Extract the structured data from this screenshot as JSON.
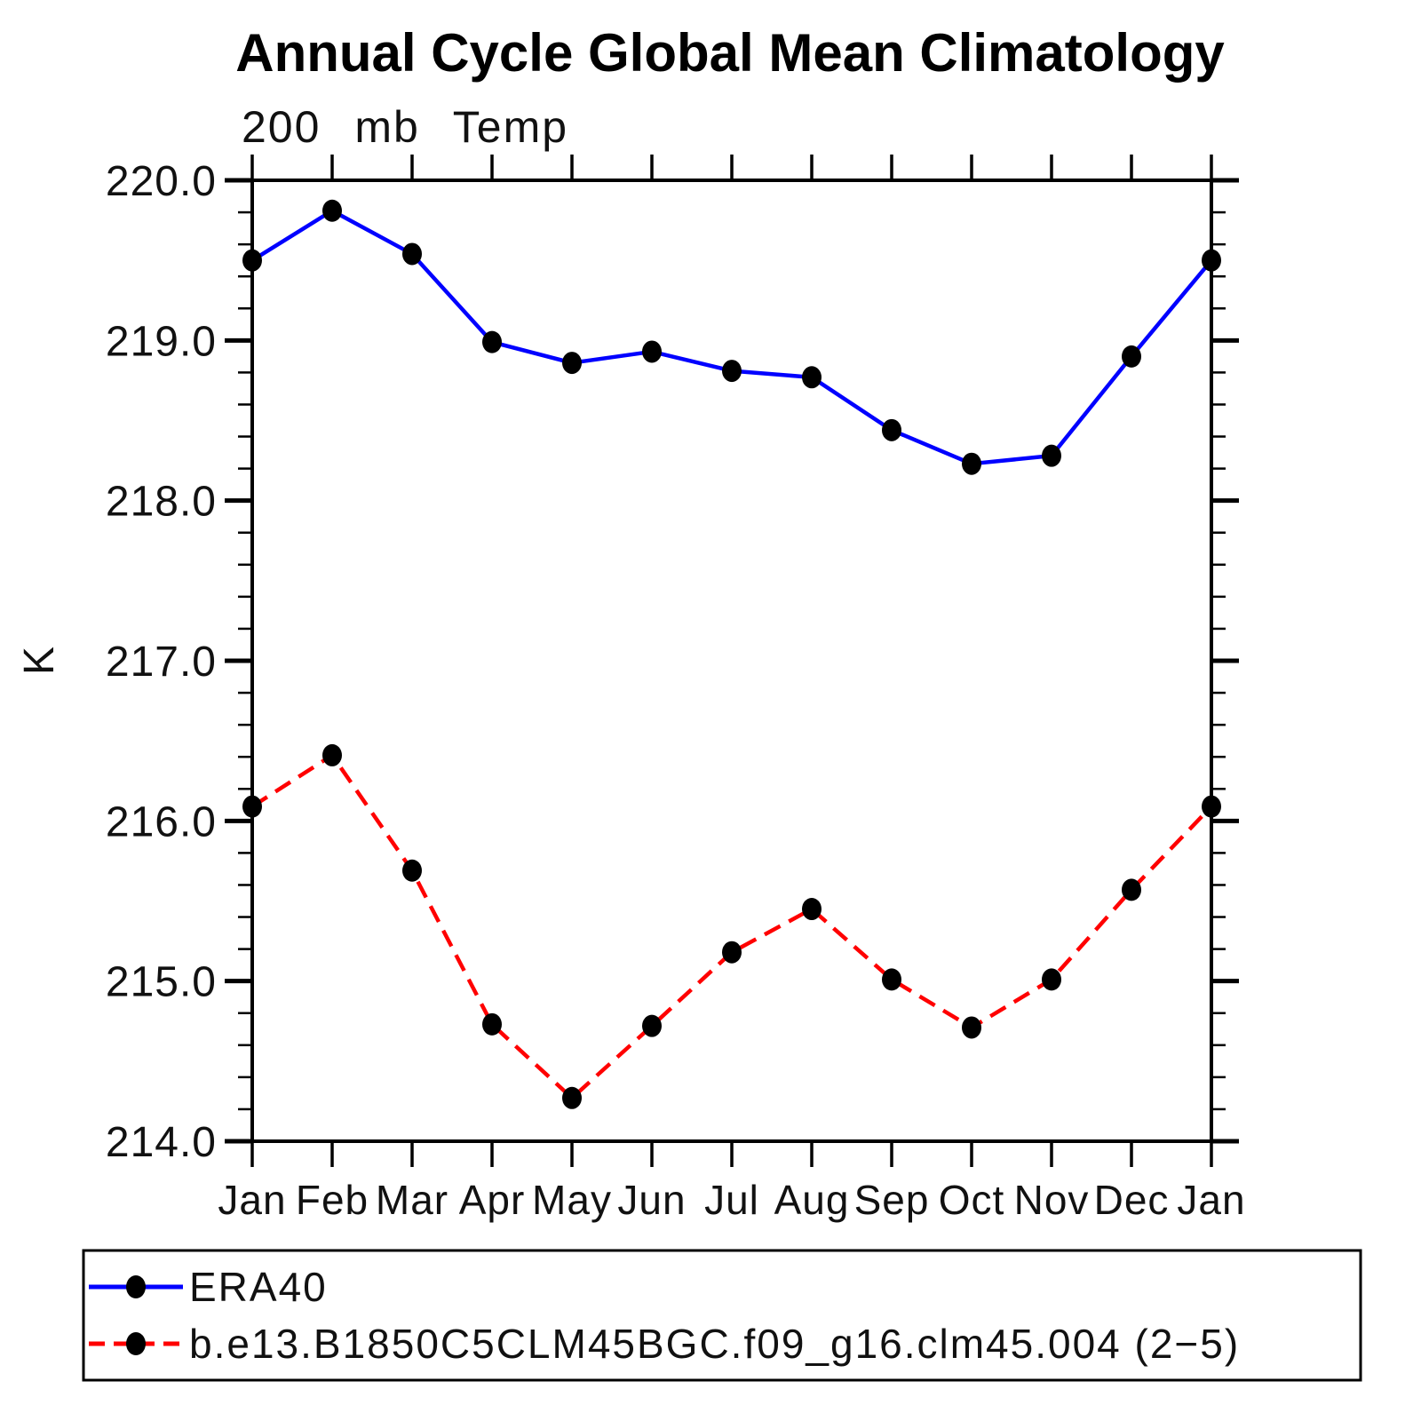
{
  "title": "Annual Cycle Global Mean Climatology",
  "subtitle": "200 mb Temp",
  "ylabel": "K",
  "chart_data": {
    "type": "line",
    "categories": [
      "Jan",
      "Feb",
      "Mar",
      "Apr",
      "May",
      "Jun",
      "Jul",
      "Aug",
      "Sep",
      "Oct",
      "Nov",
      "Dec",
      "Jan"
    ],
    "xlabel": "",
    "ylabel": "K",
    "ylim": [
      214.0,
      220.0
    ],
    "ytick_major": 1.0,
    "ytick_minor": 0.2,
    "yticklabels": [
      "220.0",
      "219.0",
      "218.0",
      "217.0",
      "216.0",
      "215.0",
      "214.0"
    ],
    "grid": false,
    "tick_direction": "out",
    "legend_position": "bottom box",
    "series": [
      {
        "name": "ERA40",
        "color": "#0000ff",
        "line_style": "solid",
        "marker": "filled-circle",
        "marker_color": "#000000",
        "values": [
          219.5,
          219.81,
          219.54,
          218.99,
          218.86,
          218.93,
          218.81,
          218.77,
          218.44,
          218.23,
          218.28,
          218.9,
          219.5
        ]
      },
      {
        "name": "b.e13.B1850C5CLM45BGC.f09_g16.clm45.004 (2−5)",
        "color": "#ff0000",
        "line_style": "dashed",
        "marker": "filled-circle",
        "marker_color": "#000000",
        "values": [
          216.09,
          216.41,
          215.69,
          214.73,
          214.27,
          214.72,
          215.18,
          215.45,
          215.01,
          214.71,
          215.01,
          215.57,
          216.09
        ]
      }
    ]
  }
}
